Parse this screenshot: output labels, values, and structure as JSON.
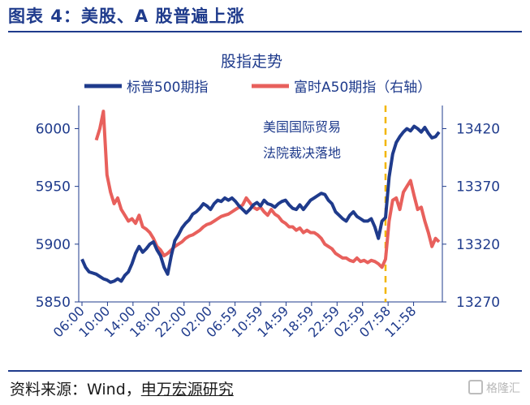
{
  "header": {
    "title": "图表 4：美股、A 股普遍上涨"
  },
  "footer": {
    "source_prefix": "资料来源：Wind，",
    "source_org": "申万宏源研究",
    "watermark": "格隆汇"
  },
  "colors": {
    "title": "#1f3b8c",
    "sp500": "#1f3b8c",
    "a50": "#e8605c",
    "event_line": "#f2b600"
  },
  "chart_data": {
    "type": "line",
    "title": "股指走势",
    "x_tick_labels": [
      "06:00",
      "10:00",
      "14:00",
      "18:00",
      "22:00",
      "02:00",
      "06:59",
      "10:59",
      "14:59",
      "18:59",
      "22:59",
      "02:59",
      "07:58",
      "11:58"
    ],
    "x_range": [
      0,
      100
    ],
    "ylim_left": [
      5850,
      6020
    ],
    "yticks_left": [
      5850,
      5900,
      5950,
      6000
    ],
    "ylim_right": [
      13270,
      13440
    ],
    "yticks_right": [
      13270,
      13320,
      13370,
      13420
    ],
    "legend_position": "top",
    "annotation": "美国国际贸易\n法院裁决落地",
    "event_x": 85,
    "series": [
      {
        "name": "标普500期指",
        "axis": "left",
        "points": [
          [
            0,
            5887
          ],
          [
            1,
            5880
          ],
          [
            2,
            5876
          ],
          [
            3,
            5875
          ],
          [
            4,
            5874
          ],
          [
            5,
            5872
          ],
          [
            6,
            5870
          ],
          [
            7,
            5869
          ],
          [
            8,
            5867
          ],
          [
            9,
            5868
          ],
          [
            10,
            5870
          ],
          [
            11,
            5868
          ],
          [
            12,
            5873
          ],
          [
            13,
            5876
          ],
          [
            14,
            5883
          ],
          [
            15,
            5892
          ],
          [
            16,
            5898
          ],
          [
            17,
            5893
          ],
          [
            18,
            5896
          ],
          [
            19,
            5900
          ],
          [
            20,
            5902
          ],
          [
            21,
            5895
          ],
          [
            22,
            5890
          ],
          [
            23,
            5880
          ],
          [
            24,
            5874
          ],
          [
            25,
            5890
          ],
          [
            26,
            5903
          ],
          [
            27,
            5908
          ],
          [
            28,
            5914
          ],
          [
            29,
            5918
          ],
          [
            30,
            5921
          ],
          [
            31,
            5926
          ],
          [
            32,
            5928
          ],
          [
            33,
            5931
          ],
          [
            34,
            5935
          ],
          [
            35,
            5933
          ],
          [
            36,
            5930
          ],
          [
            37,
            5935
          ],
          [
            38,
            5938
          ],
          [
            39,
            5937
          ],
          [
            40,
            5940
          ],
          [
            41,
            5938
          ],
          [
            42,
            5940
          ],
          [
            43,
            5937
          ],
          [
            44,
            5933
          ],
          [
            45,
            5930
          ],
          [
            46,
            5927
          ],
          [
            47,
            5930
          ],
          [
            48,
            5934
          ],
          [
            49,
            5936
          ],
          [
            50,
            5933
          ],
          [
            51,
            5938
          ],
          [
            52,
            5935
          ],
          [
            53,
            5934
          ],
          [
            54,
            5932
          ],
          [
            55,
            5935
          ],
          [
            56,
            5937
          ],
          [
            57,
            5938
          ],
          [
            58,
            5934
          ],
          [
            59,
            5931
          ],
          [
            60,
            5930
          ],
          [
            61,
            5934
          ],
          [
            62,
            5930
          ],
          [
            63,
            5934
          ],
          [
            64,
            5938
          ],
          [
            65,
            5940
          ],
          [
            66,
            5942
          ],
          [
            67,
            5944
          ],
          [
            68,
            5943
          ],
          [
            69,
            5938
          ],
          [
            70,
            5935
          ],
          [
            71,
            5928
          ],
          [
            72,
            5925
          ],
          [
            73,
            5922
          ],
          [
            74,
            5920
          ],
          [
            75,
            5925
          ],
          [
            76,
            5928
          ],
          [
            77,
            5924
          ],
          [
            78,
            5922
          ],
          [
            79,
            5920
          ],
          [
            80,
            5920
          ],
          [
            81,
            5922
          ],
          [
            82,
            5915
          ],
          [
            83,
            5905
          ],
          [
            84,
            5920
          ],
          [
            85,
            5923
          ],
          [
            86,
            5958
          ],
          [
            87,
            5978
          ],
          [
            88,
            5988
          ],
          [
            89,
            5993
          ],
          [
            90,
            5997
          ],
          [
            91,
            6000
          ],
          [
            92,
            5998
          ],
          [
            93,
            6002
          ],
          [
            94,
            6000
          ],
          [
            95,
            5997
          ],
          [
            96,
            6001
          ],
          [
            97,
            5996
          ],
          [
            98,
            5992
          ],
          [
            99,
            5993
          ],
          [
            100,
            5997
          ]
        ]
      },
      {
        "name": "富时A50期指（右轴）",
        "axis": "right",
        "points": [
          [
            4,
            13410
          ],
          [
            5,
            13420
          ],
          [
            6,
            13435
          ],
          [
            7,
            13380
          ],
          [
            8,
            13365
          ],
          [
            9,
            13355
          ],
          [
            10,
            13360
          ],
          [
            11,
            13350
          ],
          [
            12,
            13345
          ],
          [
            13,
            13340
          ],
          [
            14,
            13342
          ],
          [
            15,
            13338
          ],
          [
            16,
            13345
          ],
          [
            17,
            13335
          ],
          [
            18,
            13333
          ],
          [
            19,
            13330
          ],
          [
            20,
            13325
          ],
          [
            21,
            13318
          ],
          [
            22,
            13315
          ],
          [
            23,
            13310
          ],
          [
            24,
            13312
          ],
          [
            25,
            13315
          ],
          [
            26,
            13318
          ],
          [
            27,
            13320
          ],
          [
            28,
            13322
          ],
          [
            29,
            13325
          ],
          [
            30,
            13327
          ],
          [
            31,
            13328
          ],
          [
            32,
            13330
          ],
          [
            33,
            13332
          ],
          [
            34,
            13335
          ],
          [
            35,
            13337
          ],
          [
            36,
            13338
          ],
          [
            37,
            13340
          ],
          [
            38,
            13342
          ],
          [
            39,
            13344
          ],
          [
            40,
            13345
          ],
          [
            41,
            13346
          ],
          [
            42,
            13348
          ],
          [
            43,
            13350
          ],
          [
            44,
            13352
          ],
          [
            45,
            13354
          ],
          [
            46,
            13360
          ],
          [
            47,
            13356
          ],
          [
            48,
            13352
          ],
          [
            49,
            13350
          ],
          [
            50,
            13352
          ],
          [
            51,
            13348
          ],
          [
            52,
            13345
          ],
          [
            53,
            13350
          ],
          [
            54,
            13346
          ],
          [
            55,
            13344
          ],
          [
            56,
            13340
          ],
          [
            57,
            13338
          ],
          [
            58,
            13335
          ],
          [
            59,
            13335
          ],
          [
            60,
            13332
          ],
          [
            61,
            13334
          ],
          [
            62,
            13330
          ],
          [
            63,
            13332
          ],
          [
            64,
            13330
          ],
          [
            65,
            13330
          ],
          [
            66,
            13328
          ],
          [
            67,
            13325
          ],
          [
            68,
            13320
          ],
          [
            69,
            13318
          ],
          [
            70,
            13316
          ],
          [
            71,
            13312
          ],
          [
            72,
            13310
          ],
          [
            73,
            13308
          ],
          [
            74,
            13308
          ],
          [
            75,
            13306
          ],
          [
            76,
            13305
          ],
          [
            77,
            13308
          ],
          [
            78,
            13305
          ],
          [
            79,
            13306
          ],
          [
            80,
            13304
          ],
          [
            81,
            13306
          ],
          [
            82,
            13305
          ],
          [
            83,
            13303
          ],
          [
            84,
            13300
          ],
          [
            85,
            13307
          ],
          [
            86,
            13340
          ],
          [
            87,
            13358
          ],
          [
            88,
            13360
          ],
          [
            89,
            13350
          ],
          [
            90,
            13365
          ],
          [
            91,
            13370
          ],
          [
            92,
            13375
          ],
          [
            93,
            13362
          ],
          [
            94,
            13350
          ],
          [
            95,
            13352
          ],
          [
            96,
            13340
          ],
          [
            97,
            13330
          ],
          [
            98,
            13318
          ],
          [
            99,
            13325
          ],
          [
            100,
            13322
          ]
        ]
      }
    ]
  }
}
